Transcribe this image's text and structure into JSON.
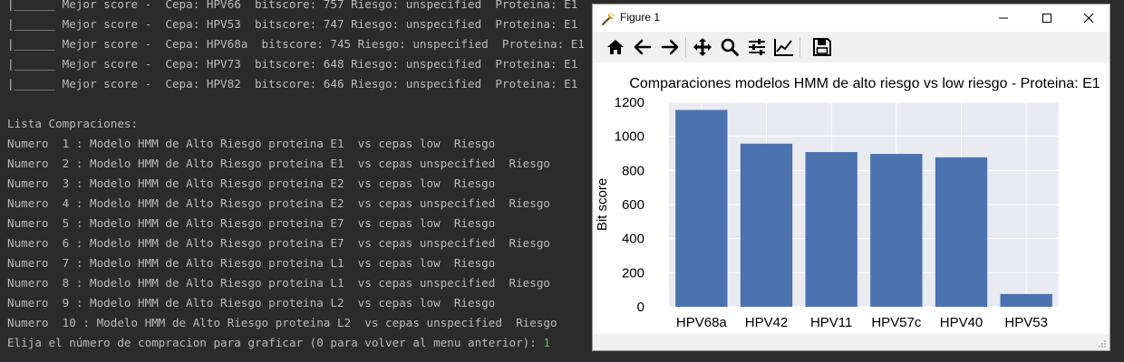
{
  "terminal": {
    "lines": [
      "|______ Mejor score -  Cepa: HPV66  bitscore: 757 Riesgo: unspecified  Proteina: E1",
      "|______ Mejor score -  Cepa: HPV53  bitscore: 747 Riesgo: unspecified  Proteina: E1",
      "|______ Mejor score -  Cepa: HPV68a  bitscore: 745 Riesgo: unspecified  Proteina: E1",
      "|______ Mejor score -  Cepa: HPV73  bitscore: 648 Riesgo: unspecified  Proteina: E1",
      "|______ Mejor score -  Cepa: HPV82  bitscore: 646 Riesgo: unspecified  Proteina: E1",
      "",
      "Lista Compraciones:",
      "Numero  1 : Modelo HMM de Alto Riesgo proteina E1  vs cepas low  Riesgo",
      "Numero  2 : Modelo HMM de Alto Riesgo proteina E1  vs cepas unspecified  Riesgo",
      "Numero  3 : Modelo HMM de Alto Riesgo proteina E2  vs cepas low  Riesgo",
      "Numero  4 : Modelo HMM de Alto Riesgo proteina E2  vs cepas unspecified  Riesgo",
      "Numero  5 : Modelo HMM de Alto Riesgo proteina E7  vs cepas low  Riesgo",
      "Numero  6 : Modelo HMM de Alto Riesgo proteina E7  vs cepas unspecified  Riesgo",
      "Numero  7 : Modelo HMM de Alto Riesgo proteina L1  vs cepas low  Riesgo",
      "Numero  8 : Modelo HMM de Alto Riesgo proteina L1  vs cepas unspecified  Riesgo",
      "Numero  9 : Modelo HMM de Alto Riesgo proteina L2  vs cepas low  Riesgo",
      "Numero  10 : Modelo HMM de Alto Riesgo proteina L2  vs cepas unspecified  Riesgo"
    ],
    "prompt": "Elija el número de compracion para graficar (0 para volver al menu anterior): ",
    "input_value": "1",
    "input_color": "#5ac05a"
  },
  "window": {
    "title": "Figure 1",
    "controls": {
      "minimize": "minimize-icon",
      "maximize": "maximize-icon",
      "close": "close-icon"
    }
  },
  "toolbar": {
    "tools": [
      "home-icon",
      "back-arrow-icon",
      "forward-arrow-icon",
      "pan-icon",
      "zoom-icon",
      "subplots-icon",
      "edit-axis-icon",
      "save-icon"
    ]
  },
  "chart_data": {
    "type": "bar",
    "title": "Comparaciones modelos HMM de alto riesgo vs low riesgo - Proteina: E1",
    "xlabel": "",
    "ylabel": "Bit score",
    "categories": [
      "HPV68a",
      "HPV42",
      "HPV11",
      "HPV57c",
      "HPV40",
      "HPV53"
    ],
    "values": [
      1155,
      957,
      908,
      897,
      877,
      75
    ],
    "ylim": [
      0,
      1200
    ],
    "yticks": [
      "0",
      "200",
      "400",
      "600",
      "800",
      "1000",
      "1200"
    ],
    "grid": true,
    "bar_color": "#4c72b0",
    "axes_background": "#eaeaf2"
  }
}
